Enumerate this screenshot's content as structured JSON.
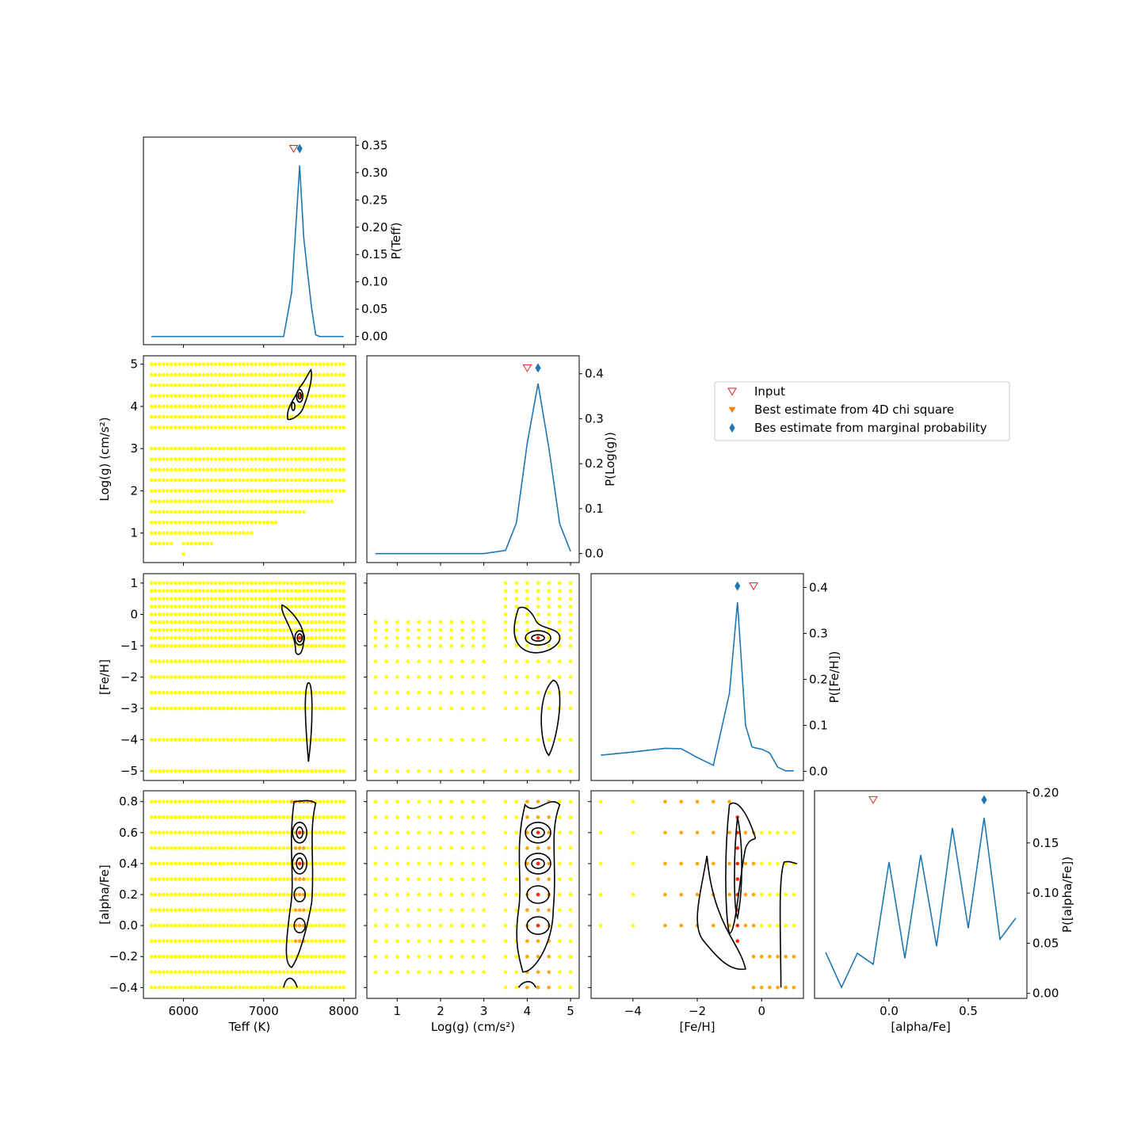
{
  "legend": {
    "placement": "right of top panels",
    "items": [
      {
        "label": "Input",
        "marker": "open-triangle-down",
        "color": "#d62728"
      },
      {
        "label": "Best estimate from 4D chi square",
        "marker": "triangle-down",
        "color": "#ff7f0e"
      },
      {
        "label": "Bes estimate from marginal probability",
        "marker": "thin-diamond",
        "color": "#1f77b4"
      }
    ]
  },
  "colors": {
    "line": "#1f77b4",
    "input": "#d62728",
    "chi": "#ff7f0e",
    "marginal": "#1f77b4",
    "grid_low": "#ffff00",
    "grid_mid": "#ffa500",
    "grid_high": "#ff2a00",
    "contour": "#000000"
  },
  "chart_data": [
    {
      "type": "line",
      "panel": "Teff marginal",
      "ylabel": "P(Teff)",
      "xlim": [
        5500,
        8150
      ],
      "ylim": [
        -0.015,
        0.365
      ],
      "xticks": [
        6000,
        7000,
        8000
      ],
      "yticks": [
        "0.00",
        "0.05",
        "0.10",
        "0.15",
        "0.20",
        "0.25",
        "0.30",
        "0.35"
      ],
      "x": [
        5600,
        7250,
        7350,
        7450,
        7500,
        7550,
        7600,
        7650,
        7700,
        8000
      ],
      "y": [
        0.0,
        0.0,
        0.081,
        0.313,
        0.182,
        0.115,
        0.051,
        0.003,
        0.0,
        0.0
      ],
      "input": [
        7375,
        0.344
      ],
      "marginal_best": [
        7450,
        0.344
      ]
    },
    {
      "type": "line",
      "panel": "Log(g) marginal",
      "ylabel": "P(Log(g))",
      "xlim": [
        0.3,
        5.2
      ],
      "ylim": [
        -0.02,
        0.44
      ],
      "xticks": [
        1,
        2,
        3,
        4,
        5
      ],
      "yticks": [
        "0.0",
        "0.1",
        "0.2",
        "0.3",
        "0.4"
      ],
      "x": [
        0.5,
        1,
        1.5,
        2,
        2.5,
        3,
        3.5,
        3.75,
        4,
        4.25,
        4.5,
        4.75,
        5
      ],
      "y": [
        0.0,
        0.0,
        0.0,
        0.0,
        0.0,
        0.0,
        0.007,
        0.068,
        0.245,
        0.378,
        0.235,
        0.066,
        0.005
      ],
      "input": [
        4.0,
        0.413
      ],
      "marginal_best": [
        4.25,
        0.413
      ]
    },
    {
      "type": "line",
      "panel": "[Fe/H] marginal",
      "ylabel": "P([Fe/H])",
      "xlim": [
        -5.3,
        1.3
      ],
      "ylim": [
        -0.02,
        0.43
      ],
      "xticks": [
        -4,
        -2,
        0
      ],
      "yticks": [
        "0.0",
        "0.1",
        "0.2",
        "0.3",
        "0.4"
      ],
      "x": [
        -5,
        -4,
        -3,
        -2.5,
        -2,
        -1.5,
        -1,
        -0.75,
        -0.5,
        -0.3,
        -0.2,
        0,
        0.25,
        0.5,
        0.75,
        1
      ],
      "y": [
        0.035,
        0.042,
        0.05,
        0.049,
        0.03,
        0.013,
        0.17,
        0.368,
        0.1,
        0.053,
        0.051,
        0.048,
        0.04,
        0.009,
        0.001,
        0.001
      ],
      "input": [
        -0.25,
        0.403
      ],
      "marginal_best": [
        -0.75,
        0.403
      ]
    },
    {
      "type": "line",
      "panel": "[alpha/Fe] marginal",
      "xlabel": "[alpha/Fe]",
      "ylabel": "P([alpha/Fe])",
      "xlim": [
        -0.47,
        0.87
      ],
      "ylim": [
        -0.005,
        0.202
      ],
      "xticks": [
        "0.0",
        "0.5"
      ],
      "yticks": [
        "0.00",
        "0.05",
        "0.10",
        "0.15",
        "0.20"
      ],
      "x": [
        -0.4,
        -0.3,
        -0.2,
        -0.1,
        0,
        0.1,
        0.2,
        0.3,
        0.4,
        0.5,
        0.6,
        0.7,
        0.8
      ],
      "y": [
        0.041,
        0.006,
        0.04,
        0.029,
        0.131,
        0.035,
        0.138,
        0.047,
        0.165,
        0.065,
        0.175,
        0.054,
        0.075
      ],
      "input": [
        -0.1,
        0.193
      ],
      "marginal_best": [
        0.6,
        0.193
      ]
    },
    {
      "type": "scatter",
      "panel": "Log(g) vs Teff",
      "ylabel": "Log(g) (cm/s²)",
      "xlim": [
        5500,
        8150
      ],
      "ylim": [
        0.3,
        5.2
      ],
      "yticks": [
        1,
        2,
        3,
        4,
        5
      ],
      "grid_rows_logg": [
        5,
        4.75,
        4.5,
        4.25,
        4,
        3.75,
        3.5,
        3,
        2.75,
        2.5,
        2.25,
        2,
        1.75,
        1.5,
        1.25,
        1,
        0.75,
        0.5
      ],
      "row_teff_max": [
        8000,
        8000,
        8000,
        8000,
        8000,
        8000,
        8000,
        8000,
        8000,
        8000,
        8000,
        8000,
        7850,
        7500,
        7150,
        6850,
        6350,
        6000
      ],
      "teff_step": 50,
      "hotspots": [
        {
          "x": 7450,
          "y": 4.25,
          "color": "red"
        }
      ]
    },
    {
      "type": "scatter",
      "panel": "[Fe/H] vs Teff",
      "ylabel": "[Fe/H]",
      "xlim": [
        5500,
        8150
      ],
      "ylim": [
        -5.3,
        1.3
      ],
      "yticks": [
        -5,
        -4,
        -3,
        -2,
        -1,
        0,
        1
      ],
      "grid_rows_feh": [
        1,
        0.75,
        0.5,
        0.25,
        0,
        -0.25,
        -0.5,
        -0.75,
        -1,
        -1.5,
        -2,
        -2.5,
        -3,
        -4,
        -5
      ],
      "teff_step": 50,
      "hotspots": [
        {
          "x": 7450,
          "y": -0.75,
          "color": "red"
        }
      ]
    },
    {
      "type": "scatter",
      "panel": "[Fe/H] vs Log(g)",
      "xlim": [
        0.3,
        5.2
      ],
      "ylim": [
        -5.3,
        1.3
      ],
      "hotspots": [
        {
          "x": 4.25,
          "y": -0.75,
          "color": "red"
        }
      ]
    },
    {
      "type": "scatter",
      "panel": "[alpha/Fe] vs Teff",
      "xlabel": "Teff (K)",
      "ylabel": "[alpha/Fe]",
      "xlim": [
        5500,
        8150
      ],
      "ylim": [
        -0.47,
        0.87
      ],
      "xticks": [
        6000,
        7000,
        8000
      ],
      "yticks": [
        "−0.4",
        "−0.2",
        "0.0",
        "0.2",
        "0.4",
        "0.6",
        "0.8"
      ],
      "hotspots": [
        {
          "x": 7450,
          "y": 0.6,
          "color": "red"
        },
        {
          "x": 7450,
          "y": 0.4,
          "color": "red"
        }
      ]
    },
    {
      "type": "scatter",
      "panel": "[alpha/Fe] vs Log(g)",
      "xlabel": "Log(g) (cm/s²)",
      "xlim": [
        0.3,
        5.2
      ],
      "ylim": [
        -0.47,
        0.87
      ],
      "xticks": [
        1,
        2,
        3,
        4,
        5
      ],
      "hotspots": [
        {
          "x": 4.25,
          "y": 0.6,
          "color": "red"
        },
        {
          "x": 4.25,
          "y": 0.4,
          "color": "red"
        },
        {
          "x": 4.25,
          "y": 0.2,
          "color": "red"
        },
        {
          "x": 4.25,
          "y": 0.0,
          "color": "red"
        }
      ]
    },
    {
      "type": "scatter",
      "panel": "[alpha/Fe] vs [Fe/H]",
      "xlabel": "[Fe/H]",
      "xlim": [
        -5.3,
        1.3
      ],
      "ylim": [
        -0.47,
        0.87
      ],
      "xticks": [
        -4,
        -2,
        0
      ]
    }
  ]
}
